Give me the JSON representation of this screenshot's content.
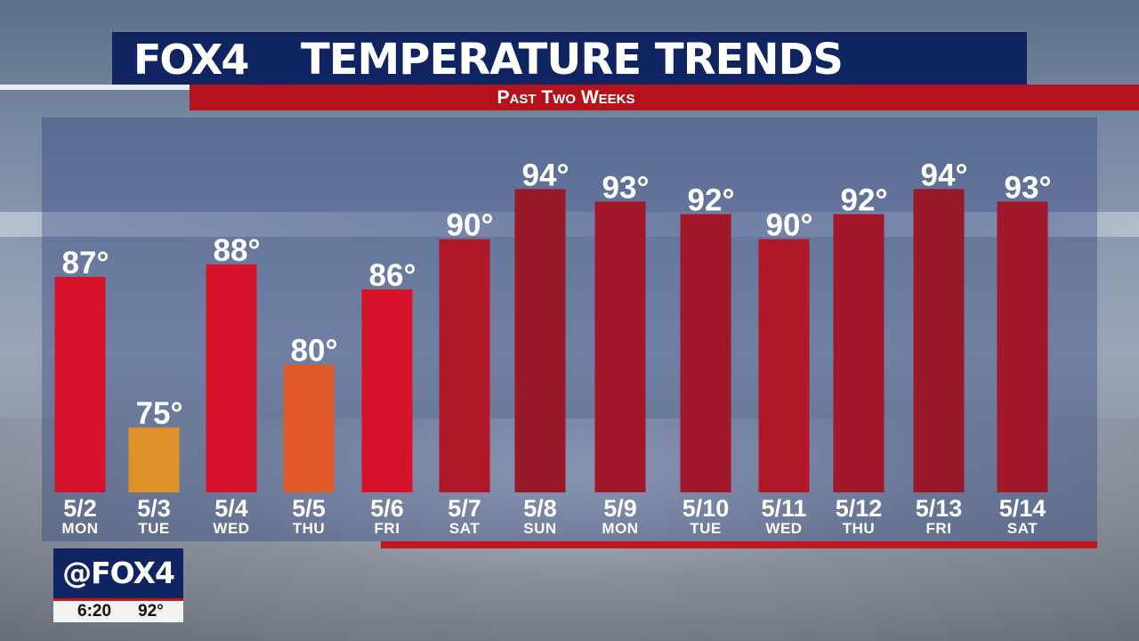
{
  "header": {
    "brand": "FOX4",
    "title": "TEMPERATURE TRENDS",
    "subtitle": "Past Two Weeks"
  },
  "bug": {
    "brand": "@FOX4",
    "time": "6:20",
    "temp": "92°"
  },
  "colors": {
    "navy": "#0f2460",
    "red": "#b5121b",
    "bar_cool": "#e0922a",
    "bar_warm": "#e05a28",
    "bar_hot": "#d6132b",
    "bar_hotter": "#b0182a",
    "bar_hottest": "#981a28"
  },
  "chart_data": {
    "type": "bar",
    "title": "TEMPERATURE TRENDS",
    "subtitle": "Past Two Weeks",
    "unit": "°",
    "categories": [
      "5/2",
      "5/3",
      "5/4",
      "5/5",
      "5/6",
      "5/7",
      "5/8",
      "5/9",
      "5/10",
      "5/11",
      "5/12",
      "5/13",
      "5/14"
    ],
    "days": [
      "Mon",
      "Tue",
      "Wed",
      "Thu",
      "Fri",
      "Sat",
      "Sun",
      "Mon",
      "Tue",
      "Wed",
      "Thu",
      "Fri",
      "Sat"
    ],
    "values": [
      87,
      75,
      88,
      80,
      86,
      90,
      94,
      93,
      92,
      90,
      92,
      94,
      93
    ],
    "value_labels": [
      "87°",
      "75°",
      "88°",
      "80°",
      "86°",
      "90°",
      "94°",
      "93°",
      "92°",
      "90°",
      "92°",
      "94°",
      "93°"
    ],
    "bar_colors": [
      "#d6132b",
      "#e0922a",
      "#d6132b",
      "#e05a28",
      "#d6132b",
      "#b0182a",
      "#981a28",
      "#a0182a",
      "#a0182a",
      "#b0182a",
      "#a0182a",
      "#981a28",
      "#a0182a"
    ],
    "xlabel": "",
    "ylabel": "",
    "legend": "none",
    "grid": false
  }
}
